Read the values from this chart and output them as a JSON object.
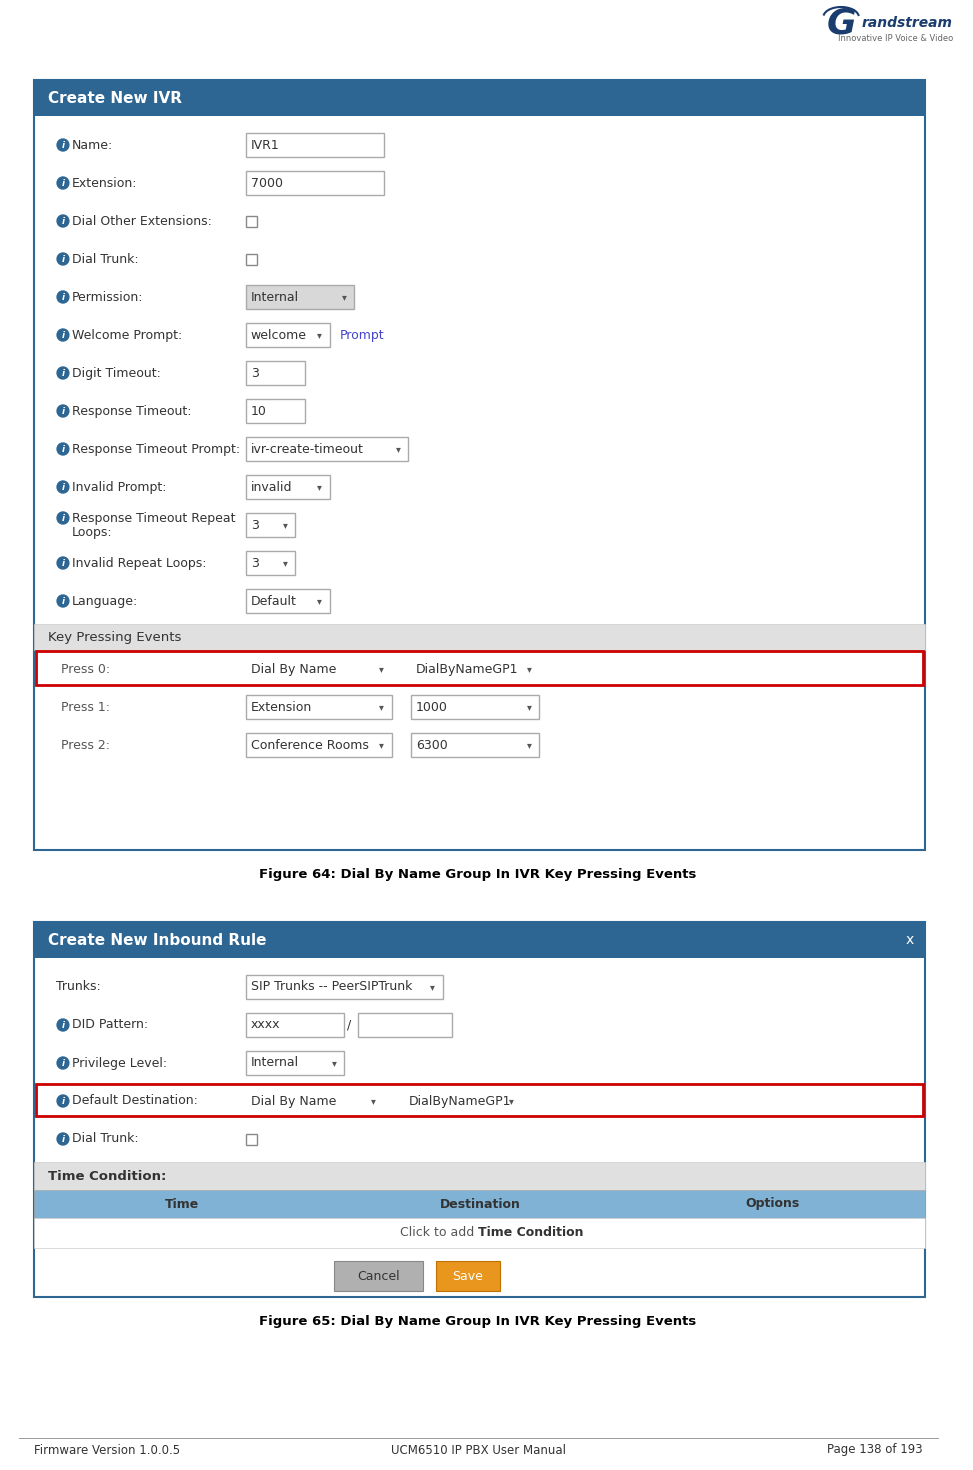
{
  "bg_color": "#ffffff",
  "header_color": "#2d6593",
  "border_color": "#2d6593",
  "info_icon_color": "#2d6593",
  "red_highlight": "#cc0000",
  "link_color": "#4444cc",
  "blue_header_light": "#7fb2d5",
  "orange_button": "#e8961e",
  "section_bg": "#e0e0e0",
  "fig1_caption": "Figure 64: Dial By Name Group In IVR Key Pressing Events",
  "fig2_caption": "Figure 65: Dial By Name Group In IVR Key Pressing Events",
  "footer_left": "Firmware Version 1.0.0.5",
  "footer_center": "UCM6510 IP PBX User Manual",
  "footer_right": "Page 138 of 193",
  "panel1_title": "Create New IVR",
  "panel2_title": "Create New Inbound Rule",
  "panel1_section": "Key Pressing Events",
  "panel2_section": "Time Condition:",
  "panel2_table_headers": [
    "Time",
    "Destination",
    "Options"
  ]
}
